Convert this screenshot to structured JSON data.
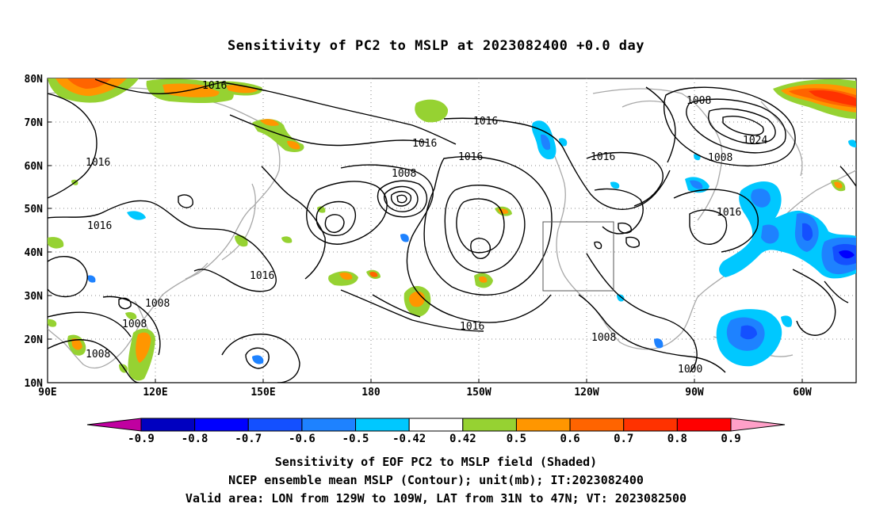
{
  "title": "Sensitivity of PC2 to MSLP at 2023082400 +0.0 day",
  "lat_labels": [
    "80N",
    "70N",
    "60N",
    "50N",
    "40N",
    "30N",
    "20N",
    "10N"
  ],
  "lon_labels": [
    "90E",
    "120E",
    "150E",
    "180",
    "150W",
    "120W",
    "90W",
    "60W"
  ],
  "contour_labels": [
    "1016",
    "1016",
    "1016",
    "1016",
    "1016",
    "1016",
    "1016",
    "1016",
    "1016",
    "1016",
    "1008",
    "1008",
    "1008",
    "1008",
    "1008",
    "1008",
    "1008",
    "1000",
    "1024"
  ],
  "colorbar": {
    "labels": [
      "-0.9",
      "-0.8",
      "-0.7",
      "-0.6",
      "-0.5",
      "-0.42",
      "0.42",
      "0.5",
      "0.6",
      "0.7",
      "0.8",
      "0.9"
    ],
    "colors": [
      "#c000a0",
      "#0000c0",
      "#0000ff",
      "#1450ff",
      "#1e82ff",
      "#00c8ff",
      "#ffffff",
      "#96d232",
      "#ff9600",
      "#ff6400",
      "#ff3200",
      "#ff0000",
      "#ffa0c8"
    ]
  },
  "captions": {
    "line1": "Sensitivity of EOF PC2 to MSLP field (Shaded)",
    "line2": "NCEP ensemble mean MSLP (Contour); unit(mb); IT:2023082400",
    "line3": "Valid area: LON from 129W to 109W, LAT from 31N to 47N; VT: 2023082500"
  }
}
